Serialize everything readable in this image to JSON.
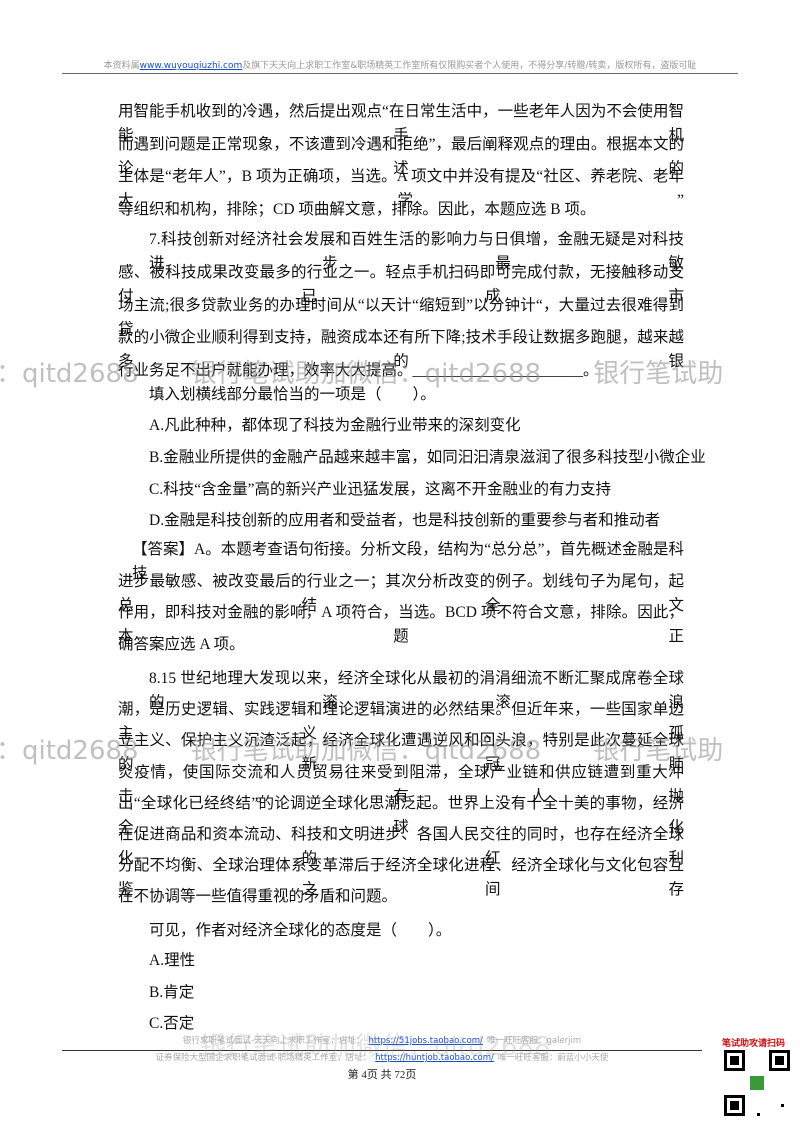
{
  "header": {
    "prefix": "本资料属",
    "link": "www.wuyouqiuzhi.com",
    "suffix": "及旗下天天向上求职工作室&职场精英工作室所有仅限购买者个人使用，不得分享/转赠/转卖，版权所有，盗版可耻"
  },
  "body": [
    {
      "lines": [
        "用智能手机收到的冷遇，然后提出观点“在日常生活中，一些老年人因为不会使用智能手机",
        "而遇到问题是正常现象，不该遭到冷遇和拒绝”，最后阐释观点的理由。根据本文的论述的",
        "主体是“老年人”，B 项为正确项，当选。A 项文中并没有提及“社区、养老院、老年大学”",
        "等组织和机构，排除；CD 项曲解文意，排除。因此，本题应选 B 项。"
      ]
    },
    {
      "lines": [
        "7.科技创新对经济社会发展和百姓生活的影响力与日俱增，金融无疑是对科技进步最敏",
        "感、被科技成果改变最多的行业之一。轻点手机扫码即可完成付款，无接触移动支付已成市",
        "场主流;很多贷款业务的办理时间从“以天计“缩短到”以分钟计“，大量过去很难得到贷",
        "款的小微企业顺利得到支持，融资成本还有所下降;技术手段让数据多跑腿，越来越多的银",
        "行业务足不出户就能办理，效率大大提高。______________________。"
      ]
    },
    {
      "lines": [
        "填入划横线部分最恰当的一项是（　　）。"
      ]
    },
    {
      "lines": [
        "A.凡此种种，都体现了科技为金融行业带来的深刻变化"
      ]
    },
    {
      "lines": [
        "B.金融业所提供的金融产品越来越丰富，如同汩汩清泉滋润了很多科技型小微企业"
      ]
    },
    {
      "lines": [
        "C.科技“含金量”高的新兴产业迅猛发展，这离不开金融业的有力支持"
      ]
    },
    {
      "lines": [
        "D.金融是科技创新的应用者和受益者，也是科技创新的重要参与者和推动者"
      ]
    },
    {
      "lines": [
        "【答案】A。本题考查语句衔接。分析文段，结构为“总分总”，首先概述金融是科技",
        "进步最敏感、被改变最后的行业之一；其次分析改变的例子。划线句子为尾句，起总结全文",
        "作用，即科技对金融的影响，A 项符合，当选。BCD 项不符合文意，排除。因此，本题正",
        "确答案应选 A 项。"
      ]
    },
    {
      "lines": [
        "8.15 世纪地理大发现以来，经济全球化从最初的涓涓细流不断汇聚成席卷全球的滚滚浪",
        "潮，是历史逻辑、实践逻辑和理论逻辑演进的必然结果。但近年来，一些国家单边主义、孤",
        "立主义、保护主义沉渣泛起，经济全球化遭遇逆风和回头浪，特别是此次蔓延全球的新冠肺",
        "炎疫情，使国际交流和人员贸易往来受到阻滞，全球产业链和供应链遭到重大冲击。有人抛",
        "出“全球化已经终结”的论调逆全球化思潮泛起。世界上没有十全十美的事物，经济全球化",
        "在促进商品和资本流动、科技和文明进步、各国人民交往的同时，也存在经济全球化的红利",
        "分配不均衡、全球治理体系变革滞后于经济全球化进程、经济全球化与文化包容互鉴之间存",
        "在不协调等一些值得重视的矛盾和问题。"
      ]
    },
    {
      "lines": [
        "可见，作者对经济全球化的态度是（　　）。"
      ]
    },
    {
      "lines": [
        "A.理性"
      ]
    },
    {
      "lines": [
        "B.肯定"
      ]
    },
    {
      "lines": [
        "C.否定"
      ]
    }
  ],
  "watermarks": [
    "：qitd2688　　银行笔试助加微信：qitd2688　　银行笔试助",
    "：qitd2688　　银行笔试助加微信：qitd2688　　银行笔试助",
    "银行笔试助加微信：qitd2688"
  ],
  "footer": {
    "lines": [
      {
        "prefix": "银行求职笔试面试-天天向上求职工作室，店址：",
        "link": "https://51jobs.taobao.com/",
        "suffix": "唯一旺旺客服：galerjim"
      },
      {
        "prefix": "证券保险大型国企求职笔试面试-职场精英工作室，店址：",
        "link": "https://huntjob.taobao.com/",
        "suffix": "唯一旺旺客服：蔚蓝小小天使"
      }
    ],
    "page": "第 4页  共 72页",
    "qr_label": "笔试助攻请扫码"
  }
}
